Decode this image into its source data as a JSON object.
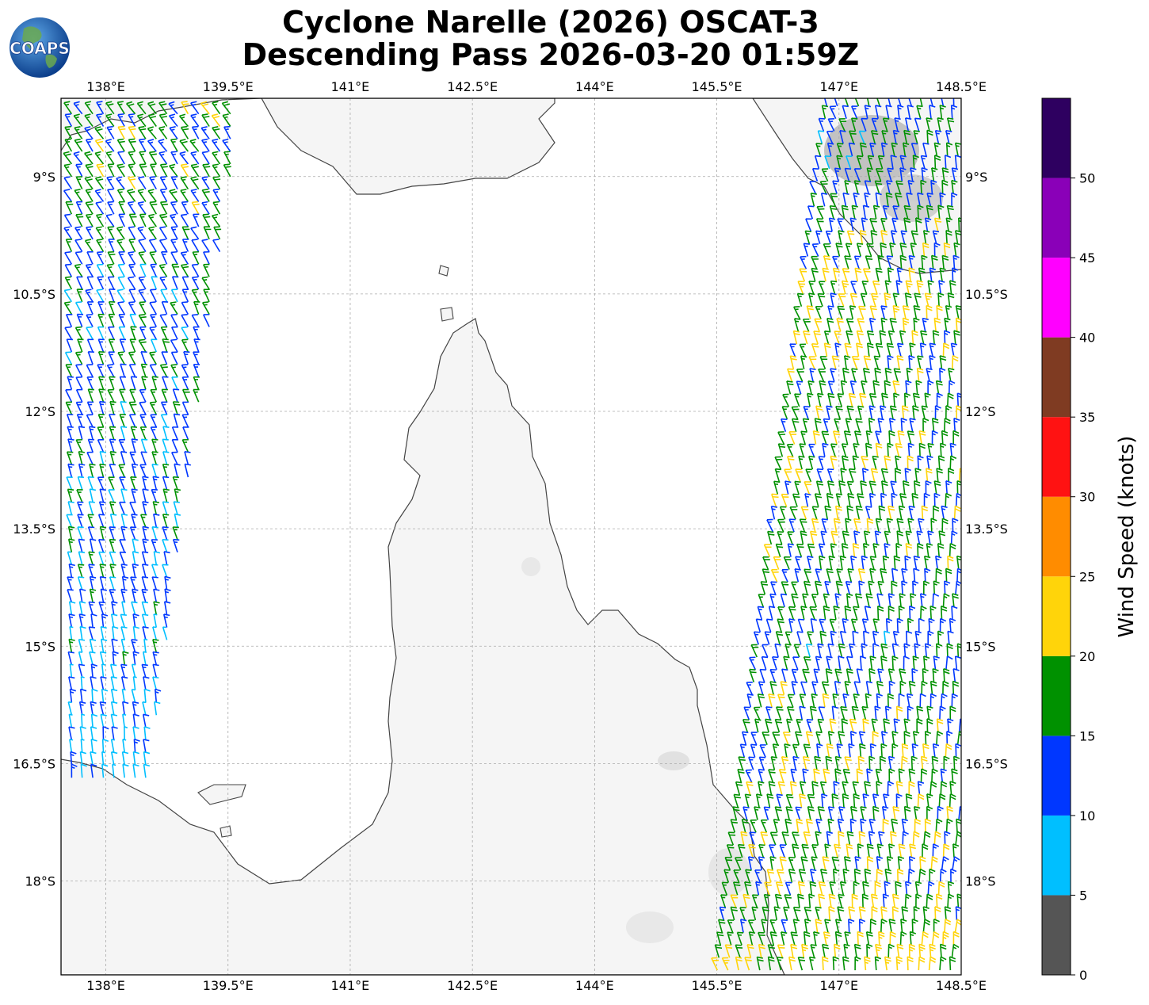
{
  "title": {
    "line1": "Cyclone Narelle (2026) OSCAT-3",
    "line2": "Descending Pass 2026-03-20 01:59Z"
  },
  "logo": {
    "text": "COAPS",
    "icon": "globe-icon"
  },
  "map": {
    "lon_range": [
      137.45,
      148.5
    ],
    "lat_range": [
      -19.2,
      -8.0
    ],
    "lon_ticks": [
      {
        "value": 138.0,
        "label": "138°E"
      },
      {
        "value": 139.5,
        "label": "139.5°E"
      },
      {
        "value": 141.0,
        "label": "141°E"
      },
      {
        "value": 142.5,
        "label": "142.5°E"
      },
      {
        "value": 144.0,
        "label": "144°E"
      },
      {
        "value": 145.5,
        "label": "145.5°E"
      },
      {
        "value": 147.0,
        "label": "147°E"
      },
      {
        "value": 148.5,
        "label": "148.5°E"
      }
    ],
    "lat_ticks": [
      {
        "value": -9.0,
        "label": "9°S"
      },
      {
        "value": -10.5,
        "label": "10.5°S"
      },
      {
        "value": -12.0,
        "label": "12°S"
      },
      {
        "value": -13.5,
        "label": "13.5°S"
      },
      {
        "value": -15.0,
        "label": "15°S"
      },
      {
        "value": -16.5,
        "label": "16.5°S"
      },
      {
        "value": -18.0,
        "label": "18°S"
      }
    ],
    "grid": true,
    "coastline_color": "#444444",
    "land_color": "#f4f4f4",
    "ocean_color": "#ffffff"
  },
  "colorbar": {
    "label": "Wind Speed (knots)",
    "bins": [
      {
        "min": 0,
        "max": 5,
        "color": "#555555"
      },
      {
        "min": 5,
        "max": 10,
        "color": "#00bfff"
      },
      {
        "min": 10,
        "max": 15,
        "color": "#0037ff"
      },
      {
        "min": 15,
        "max": 20,
        "color": "#009100"
      },
      {
        "min": 20,
        "max": 25,
        "color": "#ffd40a"
      },
      {
        "min": 25,
        "max": 30,
        "color": "#ff8c00"
      },
      {
        "min": 30,
        "max": 35,
        "color": "#ff1212"
      },
      {
        "min": 35,
        "max": 40,
        "color": "#7f3b22"
      },
      {
        "min": 40,
        "max": 45,
        "color": "#ff00ff"
      },
      {
        "min": 45,
        "max": 50,
        "color": "#8a00b8"
      },
      {
        "min": 50,
        "max": 55,
        "color": "#2e0060"
      }
    ],
    "ticks": [
      {
        "value": 0,
        "label": "0"
      },
      {
        "value": 5,
        "label": "5"
      },
      {
        "value": 10,
        "label": "10"
      },
      {
        "value": 15,
        "label": "15"
      },
      {
        "value": 20,
        "label": "20"
      },
      {
        "value": 25,
        "label": "25"
      },
      {
        "value": 30,
        "label": "30"
      },
      {
        "value": 35,
        "label": "35"
      },
      {
        "value": 40,
        "label": "40"
      },
      {
        "value": 45,
        "label": "45"
      },
      {
        "value": 50,
        "label": "50"
      }
    ]
  },
  "wind_swaths": [
    {
      "name": "west",
      "lat_range": [
        -16.8,
        -8.2
      ],
      "lat_step": 0.16,
      "lon_step": 0.13,
      "east_edge_top_lon": 139.65,
      "east_edge_bottom_lon": 138.5,
      "speed_knots_by_lat": [
        [
          -8.5,
          17
        ],
        [
          -9.5,
          16
        ],
        [
          -10.5,
          13
        ],
        [
          -12.0,
          14
        ],
        [
          -13.5,
          12
        ],
        [
          -15.0,
          11
        ],
        [
          -16.5,
          9
        ]
      ]
    },
    {
      "name": "east",
      "lat_range": [
        -19.2,
        -8.1
      ],
      "lat_step": 0.16,
      "lon_step": 0.13,
      "west_edge_top_lon": 146.85,
      "west_edge_bottom_lon": 145.5,
      "speed_knots_by_lat": [
        [
          -9.0,
          14
        ],
        [
          -10.5,
          19
        ],
        [
          -12.0,
          17
        ],
        [
          -13.5,
          18
        ],
        [
          -15.0,
          14
        ],
        [
          -16.5,
          18
        ],
        [
          -18.0,
          17
        ],
        [
          -19.0,
          20
        ]
      ]
    }
  ]
}
